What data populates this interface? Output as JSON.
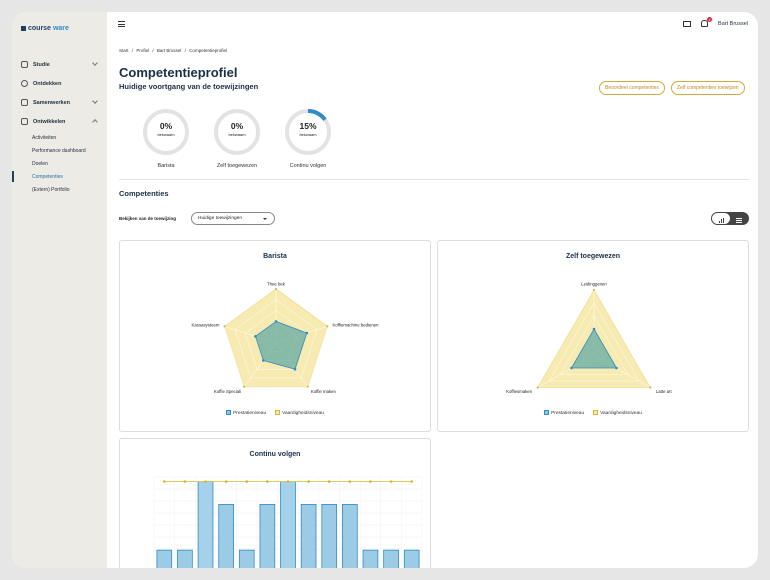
{
  "app": {
    "logo": {
      "prefix": "course",
      "suffix": "ware"
    },
    "user": "Bart Brussel",
    "notification_count": "4"
  },
  "sidebar": {
    "items": [
      {
        "label": "Studie",
        "icon": "book-icon",
        "expanded": false
      },
      {
        "label": "Ontdekken",
        "icon": "compass-icon",
        "expanded": null
      },
      {
        "label": "Samenwerken",
        "icon": "handshake-icon",
        "expanded": false
      },
      {
        "label": "Ontwikkelen",
        "icon": "growth-icon",
        "expanded": true
      }
    ],
    "subitems": [
      "Activiteiten",
      "Performance dashboard",
      "Doelen",
      "Competenties",
      "(Extern) Portfolio"
    ],
    "active_subitem": "Competenties"
  },
  "breadcrumb": [
    "Start",
    "/",
    "Profiel",
    "/",
    "Bart Brussel",
    "/",
    "Competentieprofiel"
  ],
  "page": {
    "title": "Competentieprofiel",
    "subtitle": "Huidige voortgang van de toewijzingen",
    "buttons": {
      "assess": "Beoordeel competenties",
      "assign": "Zelf competenties toewijzen"
    }
  },
  "gauges": [
    {
      "value": "0%",
      "unit": "bekwaam",
      "caption": "Barista",
      "fraction": 0.0
    },
    {
      "value": "0%",
      "unit": "bekwaam",
      "caption": "Zelf toegewezen",
      "fraction": 0.0
    },
    {
      "value": "15%",
      "unit": "bekwaam",
      "caption": "Continu volgen",
      "fraction": 0.15
    }
  ],
  "competencies": {
    "title": "Competenties",
    "view_label": "Bekijken van de toewijzing",
    "select_value": "Huidige toewijzingen"
  },
  "colors": {
    "accent": "#2e8bc9",
    "performance": "#2f8fa3",
    "skill": "#e7cf4a",
    "brand": "#1f3f5f",
    "badge": "#d9262a"
  },
  "chart_data": [
    {
      "type": "radar",
      "title": "Barista",
      "axes": [
        "Thee bek",
        "Koffiemachine bedienen",
        "Koffie maken",
        "Koffie Speciali",
        "Kassasysteem"
      ],
      "series": [
        {
          "name": "Prestatieniveau",
          "values": [
            2,
            3,
            3,
            2,
            2
          ]
        },
        {
          "name": "Vaardigheidsniveau",
          "values": [
            5,
            5,
            5,
            5,
            5
          ]
        }
      ],
      "max": 5
    },
    {
      "type": "radar",
      "title": "Zelf toegewezen",
      "axes": [
        "Leidinggeven",
        "Latte art",
        "Koffiesmaken"
      ],
      "series": [
        {
          "name": "Prestatieniveau",
          "values": [
            2,
            2,
            2
          ]
        },
        {
          "name": "Vaardigheidsniveau",
          "values": [
            5,
            5,
            5
          ]
        }
      ],
      "max": 5
    },
    {
      "type": "bar",
      "title": "Continu volgen",
      "values": [
        1,
        1,
        4,
        3,
        1,
        3,
        4,
        3,
        3,
        3,
        1,
        1,
        1
      ],
      "line_values": [
        4,
        4,
        4,
        4,
        4,
        4,
        4,
        4,
        4,
        4,
        4,
        4,
        4
      ],
      "highlight_index": [
        2,
        6
      ]
    }
  ]
}
